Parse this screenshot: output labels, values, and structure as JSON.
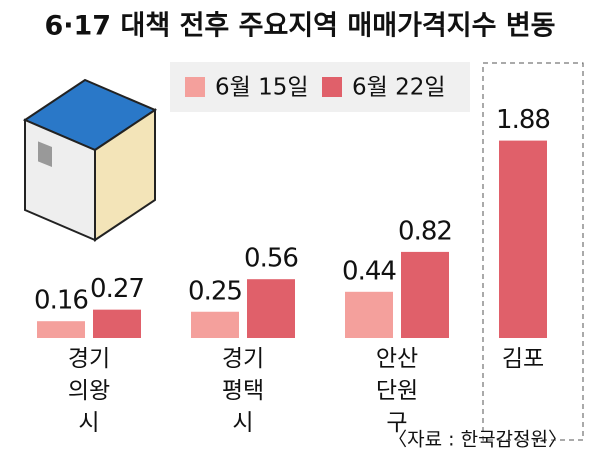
{
  "chart_data": {
    "type": "bar",
    "title": "6·17 대책 전후 주요지역 매매가격지수 변동",
    "categories": [
      "경기 의왕시",
      "경기 평택시",
      "안산 단원구",
      "김포"
    ],
    "series": [
      {
        "name": "6월 15일",
        "color": "#f4a09c",
        "values": [
          0.16,
          0.25,
          0.44,
          null
        ]
      },
      {
        "name": "6월 22일",
        "color": "#e0606a",
        "values": [
          0.27,
          0.56,
          0.82,
          1.88
        ]
      }
    ],
    "source": "〈자료 : 한국감정원〉"
  }
}
